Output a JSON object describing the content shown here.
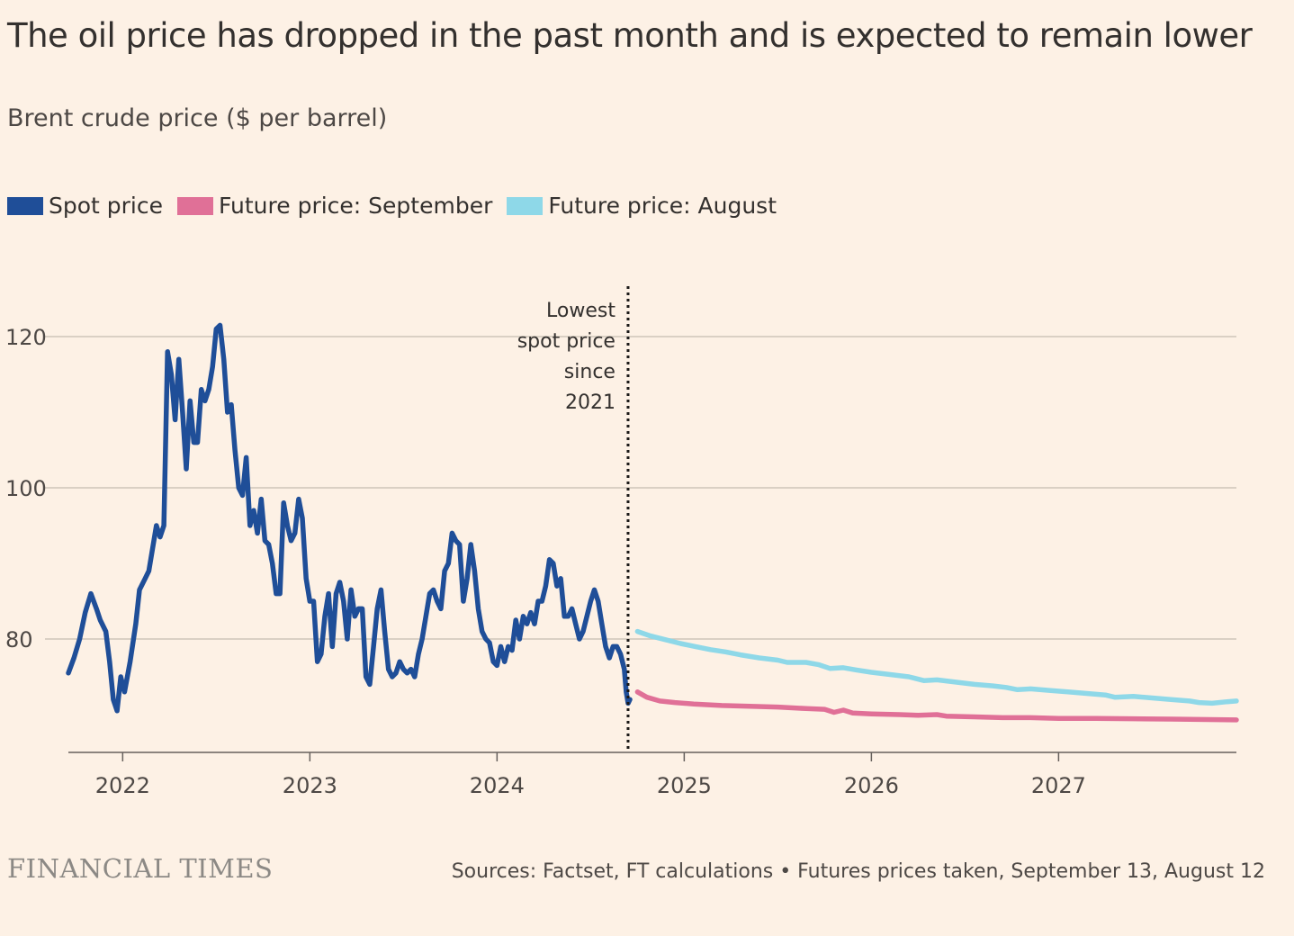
{
  "title": "The oil price has dropped in the past month and is expected to remain lower",
  "subtitle": "Brent crude price ($ per barrel)",
  "legend": [
    {
      "label": "Spot price",
      "color": "#1F4E98"
    },
    {
      "label": "Future price: September",
      "color": "#E07097"
    },
    {
      "label": "Future price: August",
      "color": "#8ED8E8"
    }
  ],
  "footer": {
    "logo": "FINANCIAL TIMES",
    "source": "Sources: Factset, FT calculations • Futures prices taken, September 13, August 12"
  },
  "chart_data": {
    "type": "line",
    "title": "The oil price has dropped in the past month and is expected to remain lower",
    "ylabel": "Brent crude price ($ per barrel)",
    "xlabel": "",
    "ylim": [
      65,
      130
    ],
    "xlim": [
      2021.71,
      2027.95
    ],
    "y_ticks": [
      80,
      100,
      120
    ],
    "x_ticks": [
      2022,
      2023,
      2024,
      2025,
      2026,
      2027
    ],
    "grid": "horizontal",
    "legend_position": "top-left",
    "annotation": {
      "x": 2024.7,
      "lines": [
        "Lowest",
        "spot price",
        "since",
        "2021"
      ]
    },
    "series": [
      {
        "name": "Spot price",
        "color": "#1F4E98",
        "points": [
          [
            2021.71,
            75.5
          ],
          [
            2021.74,
            77.5
          ],
          [
            2021.77,
            80
          ],
          [
            2021.8,
            83.5
          ],
          [
            2021.83,
            86
          ],
          [
            2021.86,
            84
          ],
          [
            2021.88,
            82.5
          ],
          [
            2021.91,
            81
          ],
          [
            2021.93,
            77
          ],
          [
            2021.95,
            72
          ],
          [
            2021.97,
            70.5
          ],
          [
            2021.99,
            75
          ],
          [
            2022.01,
            73
          ],
          [
            2022.04,
            77
          ],
          [
            2022.07,
            82
          ],
          [
            2022.09,
            86.5
          ],
          [
            2022.12,
            88
          ],
          [
            2022.14,
            89
          ],
          [
            2022.16,
            92
          ],
          [
            2022.18,
            95
          ],
          [
            2022.2,
            93.5
          ],
          [
            2022.22,
            95
          ],
          [
            2022.24,
            118
          ],
          [
            2022.26,
            115
          ],
          [
            2022.28,
            109
          ],
          [
            2022.3,
            117
          ],
          [
            2022.32,
            110
          ],
          [
            2022.34,
            102.5
          ],
          [
            2022.36,
            111.5
          ],
          [
            2022.38,
            106
          ],
          [
            2022.4,
            106
          ],
          [
            2022.42,
            113
          ],
          [
            2022.44,
            111.5
          ],
          [
            2022.46,
            113
          ],
          [
            2022.48,
            116
          ],
          [
            2022.5,
            121
          ],
          [
            2022.52,
            121.5
          ],
          [
            2022.54,
            117
          ],
          [
            2022.56,
            110
          ],
          [
            2022.58,
            111
          ],
          [
            2022.6,
            105
          ],
          [
            2022.62,
            100
          ],
          [
            2022.64,
            99
          ],
          [
            2022.66,
            104
          ],
          [
            2022.68,
            95
          ],
          [
            2022.7,
            97
          ],
          [
            2022.72,
            94
          ],
          [
            2022.74,
            98.5
          ],
          [
            2022.76,
            93
          ],
          [
            2022.78,
            92.5
          ],
          [
            2022.8,
            90
          ],
          [
            2022.82,
            86
          ],
          [
            2022.84,
            86
          ],
          [
            2022.86,
            98
          ],
          [
            2022.88,
            95
          ],
          [
            2022.9,
            93
          ],
          [
            2022.92,
            94
          ],
          [
            2022.94,
            98.5
          ],
          [
            2022.96,
            96
          ],
          [
            2022.98,
            88
          ],
          [
            2023.0,
            85
          ],
          [
            2023.02,
            85
          ],
          [
            2023.04,
            77
          ],
          [
            2023.06,
            78
          ],
          [
            2023.08,
            83
          ],
          [
            2023.1,
            86
          ],
          [
            2023.12,
            79
          ],
          [
            2023.14,
            86
          ],
          [
            2023.16,
            87.5
          ],
          [
            2023.18,
            85
          ],
          [
            2023.2,
            80
          ],
          [
            2023.22,
            86.5
          ],
          [
            2023.24,
            83
          ],
          [
            2023.26,
            84
          ],
          [
            2023.28,
            84
          ],
          [
            2023.3,
            75
          ],
          [
            2023.32,
            74
          ],
          [
            2023.34,
            79
          ],
          [
            2023.36,
            84
          ],
          [
            2023.38,
            86.5
          ],
          [
            2023.4,
            81
          ],
          [
            2023.42,
            76
          ],
          [
            2023.44,
            75
          ],
          [
            2023.46,
            75.5
          ],
          [
            2023.48,
            77
          ],
          [
            2023.5,
            76
          ],
          [
            2023.52,
            75.5
          ],
          [
            2023.54,
            76
          ],
          [
            2023.56,
            75
          ],
          [
            2023.58,
            78
          ],
          [
            2023.6,
            80
          ],
          [
            2023.62,
            83
          ],
          [
            2023.64,
            86
          ],
          [
            2023.66,
            86.5
          ],
          [
            2023.68,
            85
          ],
          [
            2023.7,
            84
          ],
          [
            2023.72,
            89
          ],
          [
            2023.74,
            90
          ],
          [
            2023.76,
            94
          ],
          [
            2023.78,
            93
          ],
          [
            2023.8,
            92.5
          ],
          [
            2023.82,
            85
          ],
          [
            2023.84,
            88
          ],
          [
            2023.86,
            92.5
          ],
          [
            2023.88,
            89
          ],
          [
            2023.9,
            84
          ],
          [
            2023.92,
            81
          ],
          [
            2023.94,
            80
          ],
          [
            2023.96,
            79.5
          ],
          [
            2023.98,
            77
          ],
          [
            2024.0,
            76.5
          ],
          [
            2024.02,
            79
          ],
          [
            2024.04,
            77
          ],
          [
            2024.06,
            79
          ],
          [
            2024.08,
            78.5
          ],
          [
            2024.1,
            82.5
          ],
          [
            2024.12,
            80
          ],
          [
            2024.14,
            83
          ],
          [
            2024.16,
            82
          ],
          [
            2024.18,
            83.5
          ],
          [
            2024.2,
            82
          ],
          [
            2024.22,
            85
          ],
          [
            2024.24,
            85
          ],
          [
            2024.26,
            87
          ],
          [
            2024.28,
            90.5
          ],
          [
            2024.3,
            90
          ],
          [
            2024.32,
            87
          ],
          [
            2024.34,
            88
          ],
          [
            2024.36,
            83
          ],
          [
            2024.38,
            83
          ],
          [
            2024.4,
            84
          ],
          [
            2024.42,
            82
          ],
          [
            2024.44,
            80
          ],
          [
            2024.46,
            81
          ],
          [
            2024.48,
            83
          ],
          [
            2024.5,
            85
          ],
          [
            2024.52,
            86.5
          ],
          [
            2024.54,
            85
          ],
          [
            2024.56,
            82
          ],
          [
            2024.58,
            79
          ],
          [
            2024.6,
            77.5
          ],
          [
            2024.62,
            79
          ],
          [
            2024.64,
            79
          ],
          [
            2024.66,
            78
          ],
          [
            2024.68,
            76
          ],
          [
            2024.69,
            73
          ],
          [
            2024.7,
            71.5
          ],
          [
            2024.71,
            72
          ]
        ]
      },
      {
        "name": "Future price: September",
        "color": "#E07097",
        "points": [
          [
            2024.75,
            73
          ],
          [
            2024.8,
            72.3
          ],
          [
            2024.87,
            71.8
          ],
          [
            2024.95,
            71.6
          ],
          [
            2025.05,
            71.4
          ],
          [
            2025.2,
            71.2
          ],
          [
            2025.35,
            71.1
          ],
          [
            2025.5,
            71
          ],
          [
            2025.65,
            70.8
          ],
          [
            2025.75,
            70.7
          ],
          [
            2025.8,
            70.3
          ],
          [
            2025.85,
            70.6
          ],
          [
            2025.9,
            70.2
          ],
          [
            2026.0,
            70.1
          ],
          [
            2026.15,
            70
          ],
          [
            2026.25,
            69.9
          ],
          [
            2026.35,
            70
          ],
          [
            2026.4,
            69.8
          ],
          [
            2026.55,
            69.7
          ],
          [
            2026.7,
            69.6
          ],
          [
            2026.85,
            69.6
          ],
          [
            2027.0,
            69.5
          ],
          [
            2027.2,
            69.5
          ],
          [
            2027.4,
            69.45
          ],
          [
            2027.6,
            69.4
          ],
          [
            2027.8,
            69.35
          ],
          [
            2027.95,
            69.3
          ]
        ]
      },
      {
        "name": "Future price: August",
        "color": "#8ED8E8",
        "points": [
          [
            2024.75,
            81
          ],
          [
            2024.82,
            80.4
          ],
          [
            2024.9,
            79.9
          ],
          [
            2024.98,
            79.4
          ],
          [
            2025.06,
            79
          ],
          [
            2025.14,
            78.6
          ],
          [
            2025.22,
            78.3
          ],
          [
            2025.3,
            77.9
          ],
          [
            2025.4,
            77.5
          ],
          [
            2025.5,
            77.2
          ],
          [
            2025.55,
            76.9
          ],
          [
            2025.65,
            76.9
          ],
          [
            2025.72,
            76.6
          ],
          [
            2025.78,
            76.1
          ],
          [
            2025.85,
            76.2
          ],
          [
            2025.92,
            75.9
          ],
          [
            2026.0,
            75.6
          ],
          [
            2026.1,
            75.3
          ],
          [
            2026.2,
            75
          ],
          [
            2026.28,
            74.5
          ],
          [
            2026.35,
            74.6
          ],
          [
            2026.45,
            74.3
          ],
          [
            2026.55,
            74
          ],
          [
            2026.65,
            73.8
          ],
          [
            2026.72,
            73.6
          ],
          [
            2026.78,
            73.3
          ],
          [
            2026.85,
            73.4
          ],
          [
            2026.95,
            73.2
          ],
          [
            2027.05,
            73
          ],
          [
            2027.15,
            72.8
          ],
          [
            2027.25,
            72.6
          ],
          [
            2027.3,
            72.3
          ],
          [
            2027.4,
            72.4
          ],
          [
            2027.5,
            72.2
          ],
          [
            2027.6,
            72
          ],
          [
            2027.7,
            71.8
          ],
          [
            2027.75,
            71.6
          ],
          [
            2027.82,
            71.5
          ],
          [
            2027.9,
            71.7
          ],
          [
            2027.95,
            71.8
          ]
        ]
      }
    ]
  }
}
